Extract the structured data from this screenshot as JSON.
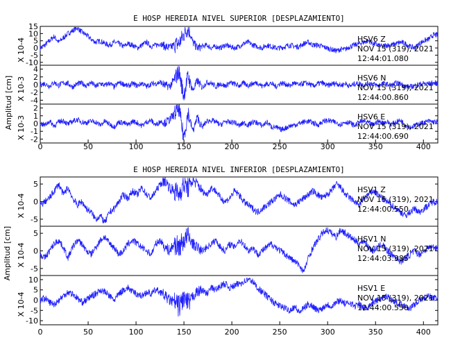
{
  "chart_data": [
    {
      "type": "line",
      "title": "E HOSP HEREDIA NIVEL SUPERIOR [DESPLAZAMIENTO]",
      "ylabel": "Amplitud [cm]",
      "xlim": [
        0,
        415
      ],
      "x_ticks": [
        "0",
        "50",
        "100",
        "150",
        "200",
        "250",
        "300",
        "350",
        "400"
      ],
      "line_color": "#1f1fff",
      "panels": [
        {
          "name": "HSV6 Z",
          "station_label": "HSV6   Z",
          "date_label": "NOV 15 (319), 2021",
          "time_label": "12:44:01.080",
          "scale_label": "X 10-4",
          "ylim": [
            -12,
            15
          ],
          "y_ticks": [
            "15",
            "10",
            "5",
            "0",
            "-5",
            "-10"
          ],
          "values": [
            0,
            2,
            5,
            8,
            4,
            7,
            10,
            12,
            14,
            11,
            9,
            6,
            4,
            5,
            3,
            2,
            4,
            3,
            1,
            3,
            2,
            0,
            2,
            4,
            1,
            2,
            3,
            1,
            0,
            2,
            3,
            9,
            14,
            4,
            0,
            1,
            2,
            0,
            1,
            0,
            2,
            1,
            0,
            1,
            3,
            4,
            2,
            1,
            0,
            2,
            1,
            0,
            0,
            1,
            2,
            1,
            1,
            3,
            4,
            2,
            2,
            1,
            0,
            -1,
            -2,
            -1,
            -1,
            1,
            2,
            3,
            4,
            5,
            3,
            2,
            1,
            2,
            2,
            3,
            4,
            3,
            1,
            0,
            3,
            5,
            6,
            9,
            9
          ]
        },
        {
          "name": "HSV6 N",
          "station_label": "HSV6   N",
          "date_label": "NOV 15 (319), 2021",
          "time_label": "12:44:00.860",
          "scale_label": "X 10-3",
          "ylim": [
            -5,
            5
          ],
          "y_ticks": [
            "4",
            "2",
            "0",
            "-2",
            "-4"
          ],
          "values": [
            0,
            0.3,
            -0.4,
            0.6,
            -0.2,
            0.5,
            0.3,
            -0.6,
            0.2,
            0.4,
            -0.3,
            0.6,
            -0.5,
            0.3,
            -0.2,
            0.4,
            -0.6,
            0.5,
            0.2,
            -0.4,
            0.3,
            -0.3,
            0.4,
            -0.5,
            0.2,
            0.3,
            0.6,
            -0.2,
            -0.4,
            1.2,
            3.5,
            -2.8,
            2.2,
            -1.5,
            1.0,
            -0.8,
            0.6,
            0.4,
            -0.5,
            0.3,
            -0.4,
            0.5,
            0.2,
            -0.3,
            0.4,
            -0.2,
            0.3,
            0.5,
            -0.4,
            0.2,
            0.3,
            -0.5,
            0.4,
            0.2,
            -0.3,
            0.5,
            -0.2,
            0.4,
            0.3,
            -0.4,
            0.2,
            0.5,
            -0.3,
            0.1,
            0.4,
            -0.2,
            0.3,
            -0.4,
            0.2,
            0.3,
            -0.1,
            0.4,
            0.2,
            -0.3,
            0.3,
            0.1,
            -0.2,
            0.4,
            0.2,
            -0.4,
            -0.6,
            -0.3,
            0.1,
            0.3,
            0.2,
            0.4,
            0.3
          ]
        },
        {
          "name": "HSV6 E",
          "station_label": "HSV6   E",
          "date_label": "NOV 15 (319), 2021",
          "time_label": "12:44:00.690",
          "scale_label": "X 10-3",
          "ylim": [
            -2.5,
            2.5
          ],
          "y_ticks": [
            "2",
            "1",
            "0",
            "-1",
            "-2"
          ],
          "values": [
            0,
            -0.2,
            0.3,
            -0.3,
            0.2,
            0.4,
            -0.1,
            0.3,
            0.5,
            0.2,
            0.1,
            0.3,
            0.2,
            -0.2,
            0.3,
            -0.1,
            -0.4,
            0.2,
            0.1,
            -0.2,
            0.3,
            0.1,
            -0.3,
            0.2,
            0.4,
            -0.2,
            0.3,
            0.1,
            0.5,
            1.2,
            2.0,
            -1.8,
            1.4,
            -1.0,
            0.8,
            -0.5,
            0.3,
            0.4,
            0.2,
            -0.2,
            0.3,
            0.1,
            0.2,
            -0.3,
            0.1,
            -0.2,
            0.2,
            0.1,
            -0.3,
            0.2,
            -0.4,
            -0.5,
            -0.8,
            -0.6,
            -0.3,
            -0.2,
            0.0,
            0.2,
            0.3,
            0.1,
            -0.2,
            0.2,
            0.4,
            0.3,
            0.1,
            -0.1,
            0.2,
            0.1,
            -0.3,
            0.2,
            0.3,
            0.1,
            -0.2,
            0.3,
            0.1,
            0.2,
            -0.1,
            0.2,
            0.4,
            -0.2,
            -0.5,
            -0.3,
            0.0,
            0.1,
            0.3,
            0.2,
            0.2
          ]
        }
      ]
    },
    {
      "type": "line",
      "title": "E HOSP HEREDIA NIVEL INFERIOR [DESPLAZAMIENTO]",
      "ylabel": "Amplitud [cm]",
      "xlim": [
        0,
        415
      ],
      "x_ticks": [
        "0",
        "50",
        "100",
        "150",
        "200",
        "250",
        "300",
        "350",
        "400"
      ],
      "line_color": "#1f1fff",
      "panels": [
        {
          "name": "HSV1 Z",
          "station_label": "HSV1   Z",
          "date_label": "NOV 15 (319), 2021",
          "time_label": "12:44:00.550",
          "scale_label": "X 10-4",
          "ylim": [
            -7,
            7
          ],
          "y_ticks": [
            "5",
            "0",
            "-5"
          ],
          "values": [
            -1,
            0,
            1,
            3,
            5,
            2,
            4,
            1,
            -1,
            0,
            -2,
            -3,
            -5,
            -4,
            -6,
            -3,
            -2,
            0,
            2,
            1,
            3,
            2,
            4,
            2,
            1,
            3,
            5,
            6,
            4,
            3,
            2,
            5,
            4,
            6,
            5,
            3,
            2,
            4,
            3,
            1,
            0,
            1,
            3,
            2,
            0,
            -1,
            -2,
            -3,
            -2,
            -1,
            0,
            1,
            2,
            1,
            0,
            -1,
            0,
            1,
            2,
            3,
            2,
            1,
            2,
            3,
            5,
            4,
            2,
            1,
            0,
            -1,
            1,
            2,
            3,
            2,
            1,
            0,
            -1,
            -2,
            -3,
            -4,
            -3,
            -2,
            -3,
            -2,
            -1,
            0,
            0
          ]
        },
        {
          "name": "HSV1 N",
          "station_label": "HSV1   N",
          "date_label": "NOV 15 (319), 2021",
          "time_label": "12:44:03.385",
          "scale_label": "X 10-4",
          "ylim": [
            -7,
            7
          ],
          "y_ticks": [
            "5",
            "0",
            "-5"
          ],
          "values": [
            -1,
            -2,
            0,
            2,
            3,
            1,
            -2,
            1,
            3,
            2,
            0,
            -1,
            1,
            3,
            4,
            2,
            1,
            -1,
            0,
            2,
            3,
            2,
            1,
            0,
            -1,
            2,
            3,
            1,
            0,
            2,
            1,
            3,
            4,
            2,
            1,
            0,
            1,
            2,
            3,
            1,
            0,
            2,
            1,
            3,
            2,
            0,
            1,
            -1,
            0,
            1,
            2,
            1,
            0,
            -1,
            -2,
            -3,
            -4,
            -6,
            -2,
            1,
            3,
            5,
            6,
            5,
            4,
            6,
            5,
            4,
            3,
            2,
            3,
            1,
            0,
            1,
            2,
            0,
            -1,
            -2,
            -3,
            -2,
            -1,
            0,
            -1,
            0,
            1,
            1,
            1
          ]
        },
        {
          "name": "HSV1 E",
          "station_label": "HSV1   E",
          "date_label": "NOV 15 (319), 2021",
          "time_label": "12:44:00.550",
          "scale_label": "X 10-4",
          "ylim": [
            -12,
            12
          ],
          "y_ticks": [
            "10",
            "5",
            "0",
            "-5",
            "-10"
          ],
          "values": [
            0,
            1,
            -1,
            -2,
            0,
            2,
            4,
            3,
            1,
            -1,
            0,
            2,
            3,
            5,
            4,
            2,
            0,
            3,
            5,
            6,
            4,
            3,
            2,
            4,
            3,
            5,
            4,
            2,
            0,
            -1,
            -3,
            1,
            -2,
            2,
            4,
            5,
            3,
            6,
            5,
            7,
            8,
            6,
            7,
            8,
            9,
            10,
            9,
            6,
            4,
            2,
            0,
            -2,
            -3,
            -4,
            -5,
            -3,
            -6,
            -4,
            -2,
            -3,
            -5,
            -4,
            -2,
            -3,
            -1,
            0,
            -2,
            -1,
            -3,
            -2,
            -4,
            -3,
            -1,
            0,
            1,
            2,
            0,
            -1,
            -2,
            -3,
            -4,
            -2,
            0,
            1,
            2,
            1,
            1
          ]
        }
      ]
    }
  ]
}
